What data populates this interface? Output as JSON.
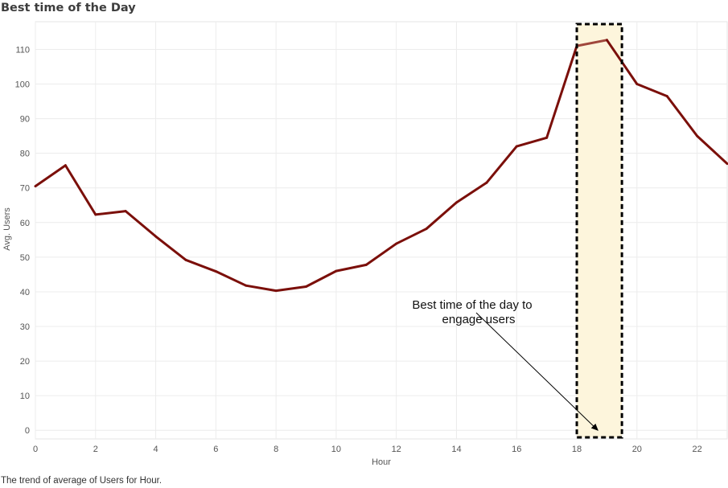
{
  "page": {
    "title": "Best time of the Day",
    "caption": "The trend of average of Users for Hour."
  },
  "chart_data": {
    "type": "line",
    "title": "Best time of the Day",
    "xlabel": "Hour",
    "ylabel": "Avg. Users",
    "x": [
      0,
      1,
      2,
      3,
      4,
      5,
      6,
      7,
      8,
      9,
      10,
      11,
      12,
      13,
      14,
      15,
      16,
      17,
      18,
      19,
      20,
      21,
      22,
      23
    ],
    "series": [
      {
        "values": [
          70.5,
          76.5,
          62.3,
          63.3,
          56,
          49.2,
          45.9,
          41.8,
          40.3,
          41.5,
          46,
          47.8,
          53.9,
          58.2,
          65.8,
          71.5,
          82,
          84.5,
          111,
          112.7,
          100,
          96.5,
          85,
          77
        ]
      }
    ],
    "xlim": [
      0,
      23
    ],
    "ylim": [
      -2.5,
      118
    ],
    "xticks": [
      0,
      2,
      4,
      6,
      8,
      10,
      12,
      14,
      16,
      18,
      20,
      22
    ],
    "yticks": [
      0,
      10,
      20,
      30,
      40,
      50,
      60,
      70,
      80,
      90,
      100,
      110
    ],
    "grid": true,
    "line_color": "#7b0f0a",
    "highlight_color": "#a0473c",
    "highlight": {
      "x_start": 18,
      "x_end": 19.5,
      "fill": "#fdf5dc"
    },
    "annotation": {
      "lines": [
        "Best time of the day to",
        "engage users"
      ],
      "arrow_to": [
        18.7,
        0
      ]
    }
  }
}
